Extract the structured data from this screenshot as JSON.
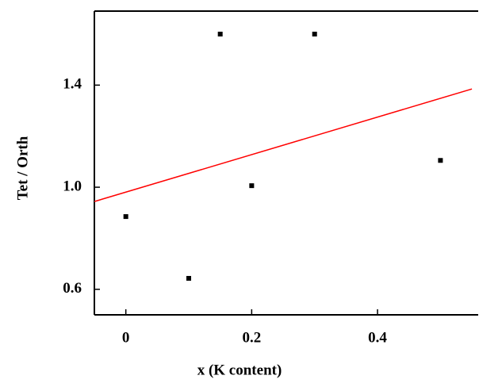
{
  "chart_data": {
    "type": "scatter",
    "x_label": "x (K content)",
    "y_label": "Tet / Orth",
    "xlim": [
      -0.05,
      0.56
    ],
    "ylim": [
      0.5,
      1.69
    ],
    "xticks": [
      0,
      0.2,
      0.4
    ],
    "yticks": [
      0.6,
      {
        "value": 1.0,
        "label": "1.0"
      },
      1.4
    ],
    "grid": false,
    "series": [
      {
        "color": "#000000",
        "mode": "markers",
        "x": [
          0,
          0.1,
          0.15,
          0.2,
          0.3,
          0.5
        ],
        "values": [
          0.885,
          0.643,
          1.6,
          1.006,
          1.6,
          1.105
        ]
      },
      {
        "color": "#ff0000",
        "mode": "line",
        "x": [
          -0.05,
          0.55
        ],
        "values": [
          0.944,
          1.385
        ]
      }
    ]
  }
}
